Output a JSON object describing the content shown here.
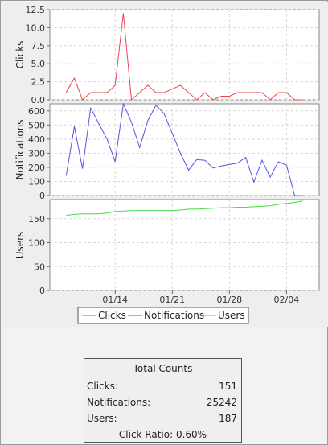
{
  "chart_data": [
    {
      "type": "line",
      "ylabel": "Clicks",
      "ylim": [
        0,
        12.5
      ],
      "yticks": [
        "0.0",
        "2.5",
        "5.0",
        "7.5",
        "10.0",
        "12.5"
      ],
      "grid": true,
      "series": [
        {
          "name": "Clicks",
          "color": "#e8454f",
          "x": [
            "2013-01-08",
            "2013-01-09",
            "2013-01-10",
            "2013-01-11",
            "2013-01-12",
            "2013-01-13",
            "2013-01-14",
            "2013-01-15",
            "2013-01-16",
            "2013-01-17",
            "2013-01-18",
            "2013-01-19",
            "2013-01-20",
            "2013-01-21",
            "2013-01-22",
            "2013-01-23",
            "2013-01-24",
            "2013-01-25",
            "2013-01-26",
            "2013-01-27",
            "2013-01-28",
            "2013-01-29",
            "2013-01-30",
            "2013-01-31",
            "2013-02-01",
            "2013-02-02",
            "2013-02-03",
            "2013-02-04",
            "2013-02-05",
            "2013-02-06"
          ],
          "values": [
            1,
            3,
            0,
            1,
            1,
            1,
            2,
            12,
            0,
            1,
            2,
            1,
            1,
            1.5,
            2,
            1,
            0,
            1,
            0,
            0.5,
            0.5,
            1,
            1,
            1,
            1,
            0,
            1,
            1,
            0,
            0
          ]
        }
      ]
    },
    {
      "type": "line",
      "ylabel": "Notifications",
      "ylim": [
        0,
        650
      ],
      "yticks": [
        "0",
        "100",
        "200",
        "300",
        "400",
        "500",
        "600"
      ],
      "grid": true,
      "series": [
        {
          "name": "Notifications",
          "color": "#5555e0",
          "x": [
            "2013-01-08",
            "2013-01-09",
            "2013-01-10",
            "2013-01-11",
            "2013-01-12",
            "2013-01-13",
            "2013-01-14",
            "2013-01-15",
            "2013-01-16",
            "2013-01-17",
            "2013-01-18",
            "2013-01-19",
            "2013-01-20",
            "2013-01-21",
            "2013-01-22",
            "2013-01-23",
            "2013-01-24",
            "2013-01-25",
            "2013-01-26",
            "2013-01-27",
            "2013-01-28",
            "2013-01-29",
            "2013-01-30",
            "2013-01-31",
            "2013-02-01",
            "2013-02-02",
            "2013-02-03",
            "2013-02-04",
            "2013-02-05",
            "2013-02-06"
          ],
          "values": [
            140,
            490,
            190,
            620,
            510,
            400,
            240,
            650,
            520,
            340,
            530,
            640,
            580,
            440,
            300,
            180,
            255,
            250,
            195,
            210,
            220,
            230,
            270,
            95,
            250,
            130,
            240,
            215,
            0,
            0
          ]
        }
      ]
    },
    {
      "type": "line",
      "ylabel": "Users",
      "ylim": [
        0,
        190
      ],
      "yticks": [
        "0",
        "50",
        "100",
        "150"
      ],
      "xticks": [
        "01/14",
        "01/21",
        "01/28",
        "02/04"
      ],
      "grid": true,
      "series": [
        {
          "name": "Users",
          "color": "#44dd44",
          "x": [
            "2013-01-08",
            "2013-01-09",
            "2013-01-10",
            "2013-01-11",
            "2013-01-12",
            "2013-01-13",
            "2013-01-14",
            "2013-01-15",
            "2013-01-16",
            "2013-01-17",
            "2013-01-18",
            "2013-01-19",
            "2013-01-20",
            "2013-01-21",
            "2013-01-22",
            "2013-01-23",
            "2013-01-24",
            "2013-01-25",
            "2013-01-26",
            "2013-01-27",
            "2013-01-28",
            "2013-01-29",
            "2013-01-30",
            "2013-01-31",
            "2013-02-01",
            "2013-02-02",
            "2013-02-03",
            "2013-02-04",
            "2013-02-05",
            "2013-02-06"
          ],
          "values": [
            157,
            159,
            160,
            160,
            160,
            162,
            165,
            166,
            167,
            167,
            167,
            167,
            167,
            167,
            168,
            170,
            170,
            171,
            172,
            173,
            173,
            174,
            174,
            175,
            176,
            177,
            180,
            182,
            184,
            187
          ]
        }
      ]
    }
  ],
  "legend": [
    {
      "label": "Clicks",
      "color": "#e8454f"
    },
    {
      "label": "Notifications",
      "color": "#5555e0"
    },
    {
      "label": "Users",
      "color": "#44dd44"
    }
  ],
  "stats": {
    "title": "Total Counts",
    "rows": [
      {
        "label": "Clicks:",
        "value": "151"
      },
      {
        "label": "Notifications:",
        "value": "25242"
      },
      {
        "label": "Users:",
        "value": "187"
      }
    ],
    "ratio": "Click Ratio: 0.60%"
  }
}
